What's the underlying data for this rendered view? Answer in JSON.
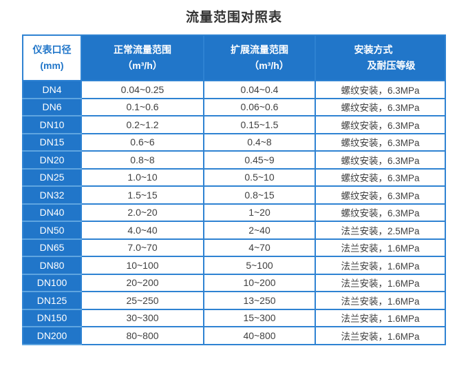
{
  "title": "流量范围对照表",
  "colors": {
    "blue_fill": "#2176C9",
    "blue_border": "#2E82D2",
    "blue_border_light": "#5FA5E0",
    "text_dark": "#3F3F3F"
  },
  "table": {
    "headers": [
      {
        "line1": "仪表口径",
        "line2": "(mm)"
      },
      {
        "line1": "正常流量范围",
        "line2": "（m³/h）"
      },
      {
        "line1": "扩展流量范围",
        "line2": "（m³/h）"
      },
      {
        "line1": "安装方式",
        "line2": "及耐压等级"
      }
    ],
    "rows": [
      {
        "dn": "DN4",
        "normal": "0.04~0.25",
        "extended": "0.04~0.4",
        "install": "螺纹安装，6.3MPa"
      },
      {
        "dn": "DN6",
        "normal": "0.1~0.6",
        "extended": "0.06~0.6",
        "install": "螺纹安装，6.3MPa"
      },
      {
        "dn": "DN10",
        "normal": "0.2~1.2",
        "extended": "0.15~1.5",
        "install": "螺纹安装，6.3MPa"
      },
      {
        "dn": "DN15",
        "normal": "0.6~6",
        "extended": "0.4~8",
        "install": "螺纹安装，6.3MPa"
      },
      {
        "dn": "DN20",
        "normal": "0.8~8",
        "extended": "0.45~9",
        "install": "螺纹安装，6.3MPa"
      },
      {
        "dn": "DN25",
        "normal": "1.0~10",
        "extended": "0.5~10",
        "install": "螺纹安装，6.3MPa"
      },
      {
        "dn": "DN32",
        "normal": "1.5~15",
        "extended": "0.8~15",
        "install": "螺纹安装，6.3MPa"
      },
      {
        "dn": "DN40",
        "normal": "2.0~20",
        "extended": "1~20",
        "install": "螺纹安装，6.3MPa"
      },
      {
        "dn": "DN50",
        "normal": "4.0~40",
        "extended": "2~40",
        "install": "法兰安装，2.5MPa"
      },
      {
        "dn": "DN65",
        "normal": "7.0~70",
        "extended": "4~70",
        "install": "法兰安装，1.6MPa"
      },
      {
        "dn": "DN80",
        "normal": "10~100",
        "extended": "5~100",
        "install": "法兰安装，1.6MPa"
      },
      {
        "dn": "DN100",
        "normal": "20~200",
        "extended": "10~200",
        "install": "法兰安装，1.6MPa"
      },
      {
        "dn": "DN125",
        "normal": "25~250",
        "extended": "13~250",
        "install": "法兰安装，1.6MPa"
      },
      {
        "dn": "DN150",
        "normal": "30~300",
        "extended": "15~300",
        "install": "法兰安装，1.6MPa"
      },
      {
        "dn": "DN200",
        "normal": "80~800",
        "extended": "40~800",
        "install": "法兰安装，1.6MPa"
      }
    ]
  }
}
